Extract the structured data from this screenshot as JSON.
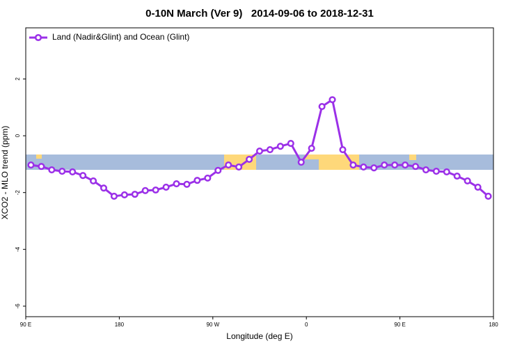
{
  "chart_data": {
    "type": "line",
    "title": "0-10N March (Ver 9)   2014-09-06 to 2018-12-31",
    "xlabel": "Longitude (deg E)",
    "ylabel": "XCO2 - MLO trend (ppm)",
    "xlim": [
      90,
      540
    ],
    "xticks": [
      {
        "value": 90,
        "label": "90 E"
      },
      {
        "value": 180,
        "label": "180"
      },
      {
        "value": 270,
        "label": "90 W"
      },
      {
        "value": 360,
        "label": "0"
      },
      {
        "value": 450,
        "label": "90 E"
      },
      {
        "value": 540,
        "label": "180"
      }
    ],
    "ylim": [
      -6.37,
      3.8
    ],
    "yticks": [
      -6,
      -4,
      -2,
      0,
      2
    ],
    "legend": "top-left",
    "x": [
      95,
      105,
      115,
      125,
      135,
      145,
      155,
      165,
      175,
      185,
      195,
      205,
      215,
      225,
      235,
      245,
      255,
      265,
      275,
      285,
      295,
      305,
      315,
      325,
      335,
      345,
      355,
      365,
      375,
      385,
      395,
      405,
      415,
      425,
      435,
      445,
      455,
      465,
      475,
      485,
      495,
      505,
      515,
      525,
      535
    ],
    "series": [
      {
        "name": "Land (Nadir&Glint) and Ocean (Glint)",
        "color": "#9b30e8",
        "values": [
          -1.03,
          -1.08,
          -1.2,
          -1.25,
          -1.27,
          -1.4,
          -1.59,
          -1.84,
          -2.13,
          -2.08,
          -2.06,
          -1.93,
          -1.91,
          -1.81,
          -1.69,
          -1.71,
          -1.57,
          -1.49,
          -1.22,
          -1.03,
          -1.1,
          -0.83,
          -0.54,
          -0.49,
          -0.37,
          -0.27,
          -0.93,
          -0.44,
          1.03,
          1.27,
          -0.49,
          -1.03,
          -1.1,
          -1.13,
          -1.03,
          -1.03,
          -1.03,
          -1.08,
          -1.2,
          -1.25,
          -1.27,
          -1.42,
          -1.59,
          -1.81,
          -2.13
        ]
      }
    ]
  }
}
